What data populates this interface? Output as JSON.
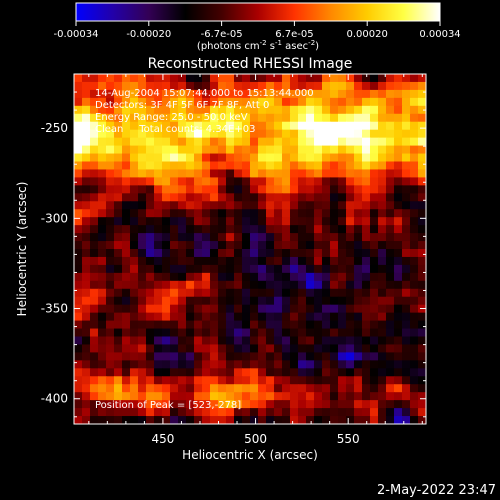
{
  "colorbar": {
    "tick_labels": [
      "-0.00034",
      "-0.00020",
      "-6.7e-05",
      "6.7e-05",
      "0.00020",
      "0.00034"
    ],
    "units_prefix": "(photons cm",
    "units_exp1": "-2",
    "units_mid": " s",
    "units_exp2": "-1",
    "units_mid2": " asec",
    "units_exp3": "-2",
    "units_suffix": ")",
    "stops": [
      "#0000ff",
      "#2200aa",
      "#330055",
      "#000000",
      "#440000",
      "#aa0000",
      "#ff3300",
      "#ff8800",
      "#ffcc00",
      "#ffff44",
      "#ffffff"
    ]
  },
  "chart_data": {
    "type": "heatmap",
    "title": "Reconstructed RHESSI Image",
    "xlabel": "Heliocentric X (arcsec)",
    "ylabel": "Heliocentric Y (arcsec)",
    "xlim": [
      402,
      592
    ],
    "ylim": [
      -414,
      -220
    ],
    "x_ticks": [
      450,
      500,
      550
    ],
    "y_ticks": [
      -400,
      -350,
      -300,
      -250
    ],
    "color_range": [
      -0.00034,
      0.00034
    ],
    "peak": [
      523,
      -278
    ],
    "grid": false
  },
  "info": {
    "line1": "14-Aug-2004 15:07:44.000 to 15:13:44.000",
    "line2": "Detectors: 3F 4F 5F 6F 7F 8F, Att 0",
    "line3": "Energy Range: 25.0 - 50.0 keV",
    "line4": "Clean     Total counts: 4.34E+03",
    "peak_label": "Position of Peak = [523,-278]"
  },
  "timestamp": "2-May-2022 23:47"
}
